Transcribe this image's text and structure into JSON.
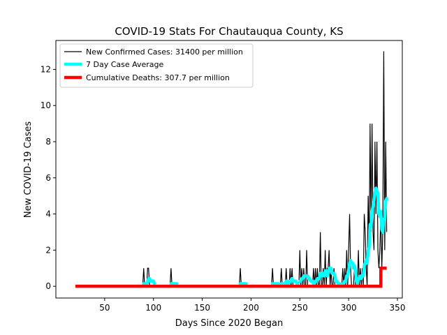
{
  "chart_data": {
    "type": "line",
    "title": "COVID-19 Stats For Chautauqua County, KS",
    "xlabel": "Days Since 2020 Began",
    "ylabel": "New COVID-19 Cases",
    "xlim": [
      0,
      355
    ],
    "ylim": [
      -0.65,
      13.6
    ],
    "x_ticks": [
      50,
      100,
      150,
      200,
      250,
      300,
      350
    ],
    "y_ticks": [
      0,
      2,
      4,
      6,
      8,
      10,
      12
    ],
    "grid": false,
    "legend_position": "top-left",
    "series": [
      {
        "name": "New Confirmed Cases: 31400 per million",
        "color": "#000000",
        "kind": "daily",
        "x_range": [
          20,
          339
        ],
        "nonzero_points": [
          [
            90,
            1
          ],
          [
            94,
            1
          ],
          [
            95,
            1
          ],
          [
            118,
            1
          ],
          [
            189,
            1
          ],
          [
            222,
            1
          ],
          [
            231,
            1
          ],
          [
            236,
            1
          ],
          [
            240,
            1
          ],
          [
            242,
            1
          ],
          [
            250,
            2
          ],
          [
            252,
            1
          ],
          [
            254,
            1
          ],
          [
            257,
            2
          ],
          [
            264,
            1
          ],
          [
            266,
            1
          ],
          [
            268,
            1
          ],
          [
            271,
            3
          ],
          [
            274,
            1
          ],
          [
            276,
            2
          ],
          [
            278,
            1
          ],
          [
            279,
            1
          ],
          [
            280,
            2
          ],
          [
            282,
            1
          ],
          [
            285,
            1
          ],
          [
            294,
            1
          ],
          [
            296,
            1
          ],
          [
            298,
            2
          ],
          [
            300,
            2
          ],
          [
            301,
            4
          ],
          [
            302,
            1
          ],
          [
            306,
            1
          ],
          [
            310,
            2
          ],
          [
            312,
            1
          ],
          [
            314,
            1
          ],
          [
            316,
            4
          ],
          [
            317,
            3
          ],
          [
            318,
            1
          ],
          [
            320,
            5
          ],
          [
            321,
            2
          ],
          [
            322,
            9
          ],
          [
            323,
            3
          ],
          [
            324,
            9
          ],
          [
            325,
            3
          ],
          [
            326,
            2
          ],
          [
            327,
            8
          ],
          [
            328,
            4
          ],
          [
            329,
            8
          ],
          [
            330,
            2
          ],
          [
            331,
            1
          ],
          [
            332,
            2
          ],
          [
            333,
            4
          ],
          [
            334,
            1
          ],
          [
            335,
            3
          ],
          [
            336,
            13
          ],
          [
            337,
            2
          ],
          [
            338,
            8
          ],
          [
            339,
            3
          ]
        ]
      },
      {
        "name": "7 Day Case Average",
        "color": "#00ffff",
        "kind": "rolling_average",
        "window": 7
      },
      {
        "name": "Cumulative Deaths: 307.7 per million",
        "color": "#ff0000",
        "kind": "step",
        "points": [
          [
            20,
            0
          ],
          [
            333,
            0
          ],
          [
            333,
            1
          ],
          [
            339,
            1
          ]
        ]
      }
    ]
  }
}
